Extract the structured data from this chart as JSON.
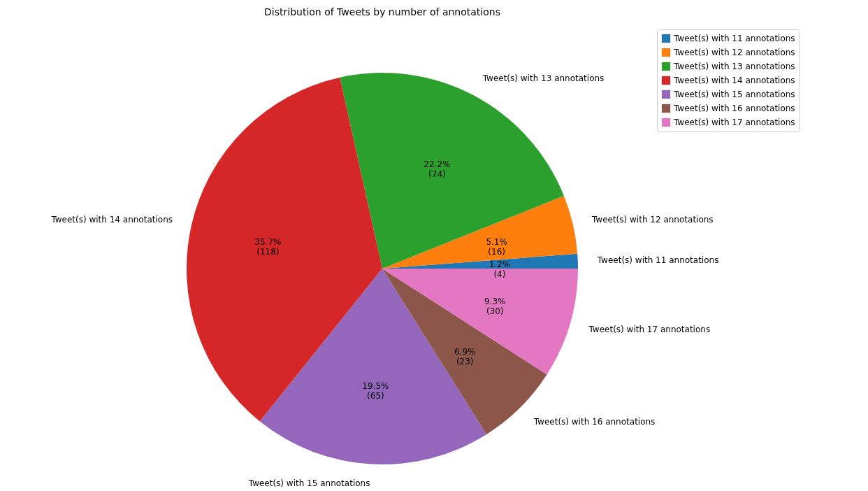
{
  "chart_data": {
    "type": "pie",
    "title": "Distribution of Tweets by number of annotations",
    "categories": [
      "Tweet(s) with 11 annotations",
      "Tweet(s) with 12 annotations",
      "Tweet(s) with 13 annotations",
      "Tweet(s) with 14 annotations",
      "Tweet(s) with 15 annotations",
      "Tweet(s) with 16 annotations",
      "Tweet(s) with 17 annotations"
    ],
    "values": [
      4,
      16,
      74,
      118,
      65,
      23,
      30
    ],
    "colors": [
      "#1f77b4",
      "#ff7f0e",
      "#2ca02c",
      "#d62728",
      "#9467bd",
      "#8c564b",
      "#e377c2"
    ],
    "value_labels": [
      "1.2%\n(4)",
      "5.1%\n(16)",
      "22.2%\n(74)",
      "35.7%\n(118)",
      "19.5%\n(65)",
      "6.9%\n(23)",
      "9.3%\n(30)"
    ],
    "legend": "top right"
  }
}
